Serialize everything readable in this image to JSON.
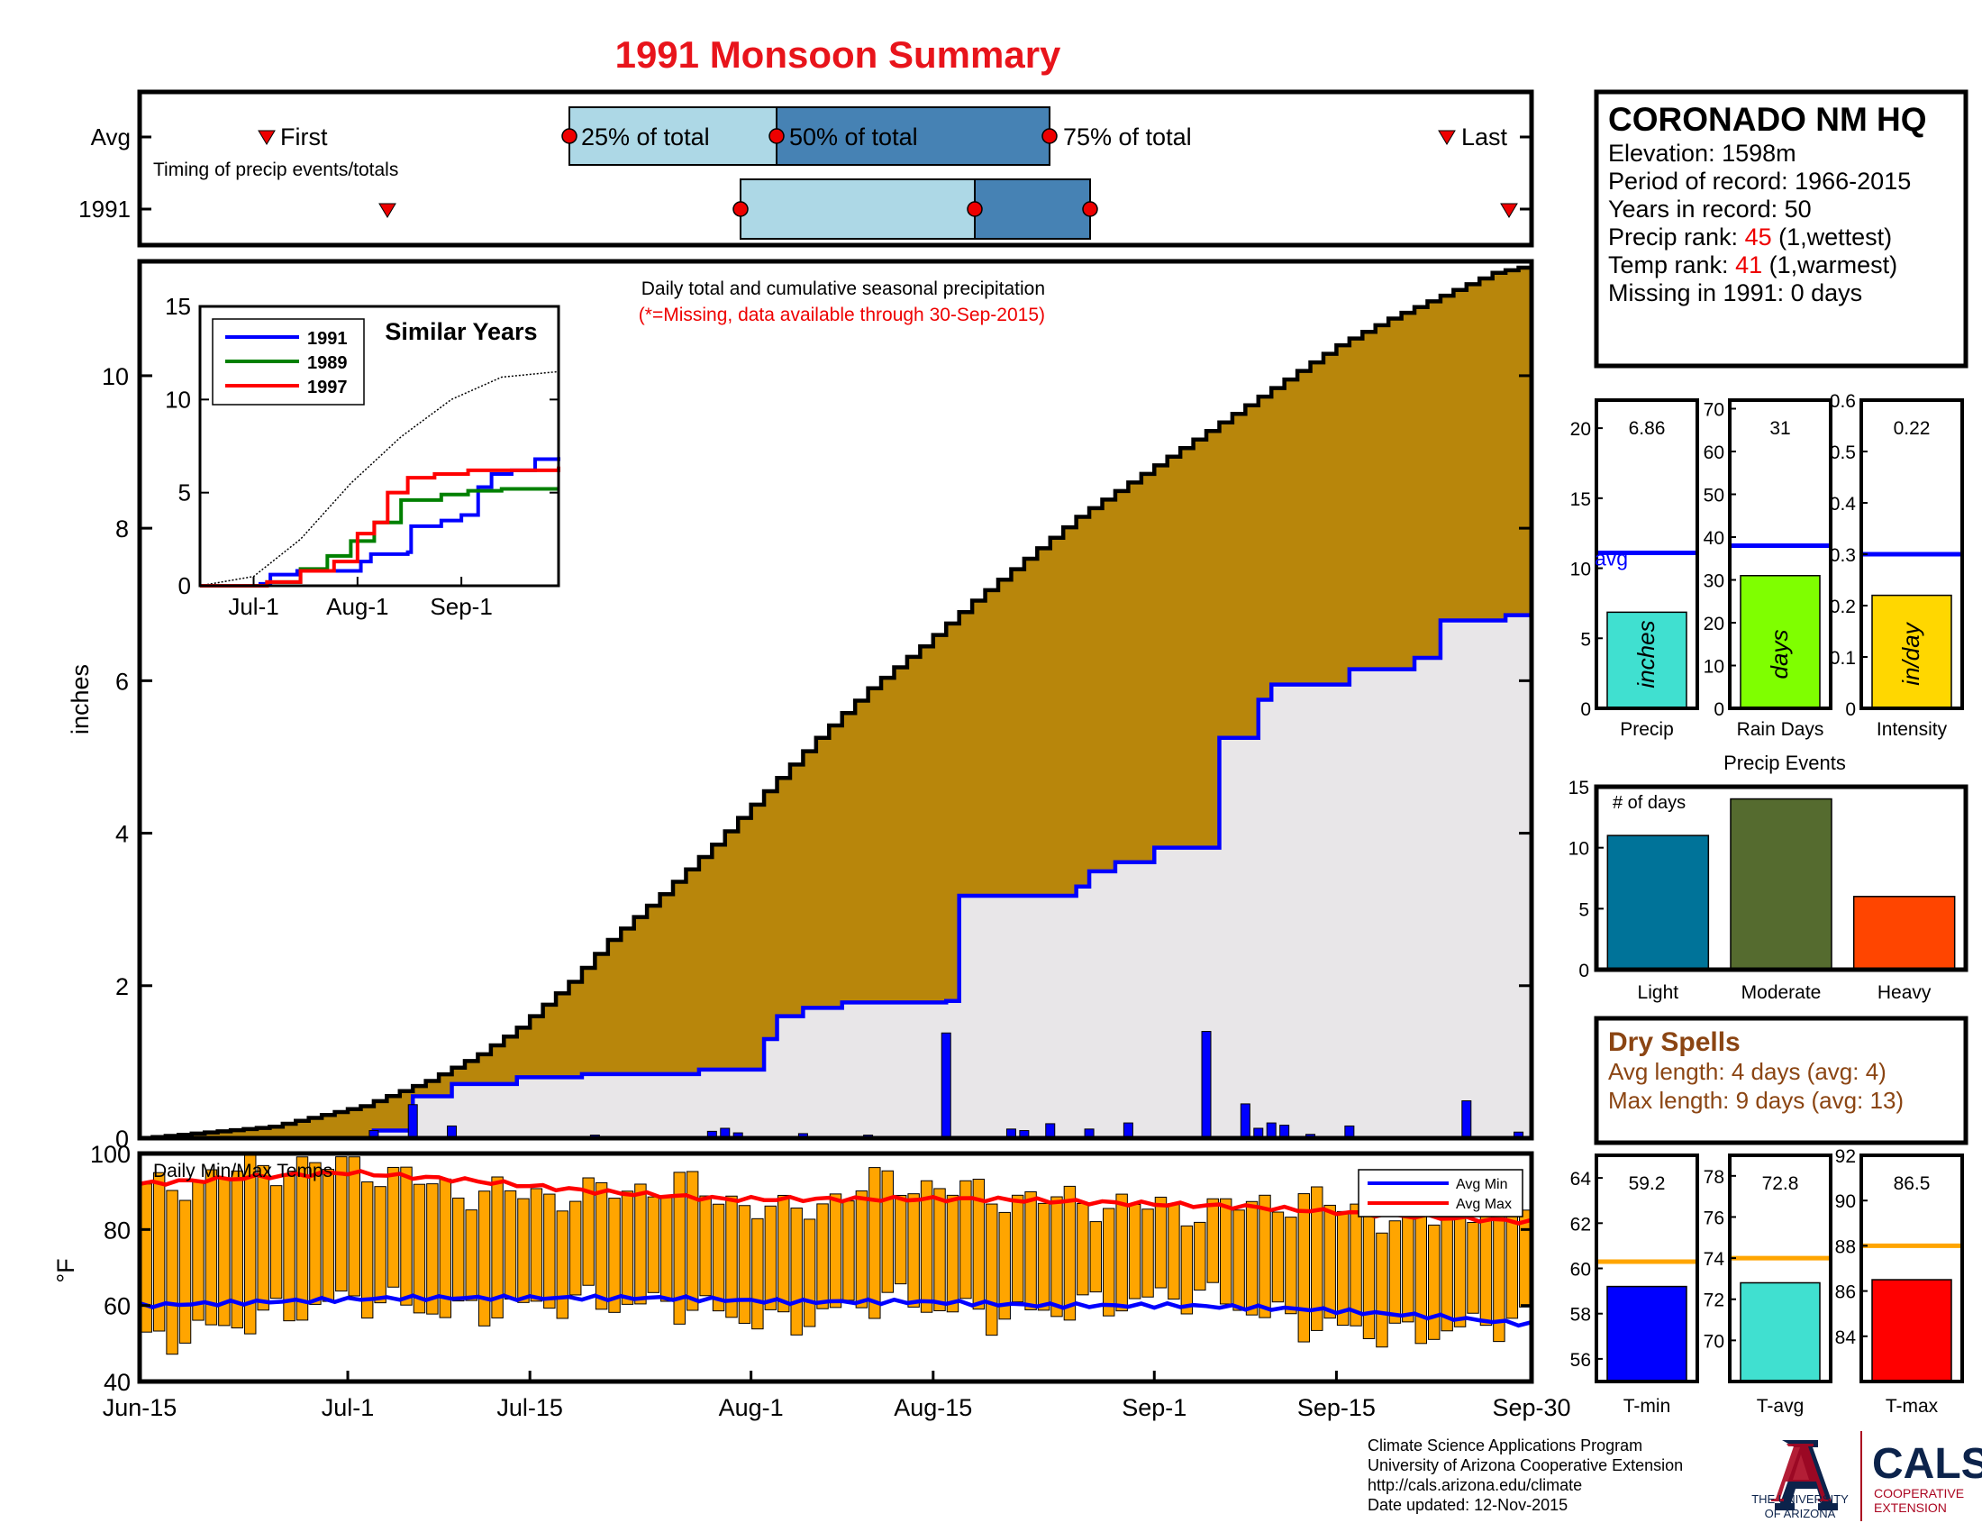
{
  "title": "1991 Monsoon Summary",
  "timing": {
    "row_labels": [
      "Avg",
      "1991"
    ],
    "first_label": "First",
    "last_label": "Last",
    "p25_label": "25% of total",
    "p50_label": "50% of total",
    "p75_label": "75% of total",
    "caption": "Timing of precip events/totals",
    "avg": {
      "first": "Jun-24",
      "p25": "Jul-25",
      "p50": "Aug-1",
      "p75": "Aug-24",
      "last": "Sep-28"
    },
    "year": {
      "first": "Jul-3",
      "p25": "Jul-31",
      "p50": "Aug-19",
      "p75": "Aug-28",
      "last": "Sep-29"
    }
  },
  "station": {
    "name": "CORONADO NM HQ",
    "elevation_label": "Elevation: 1598m",
    "period_label": "Period of record: 1966-2015",
    "years_label": "Years in record: 50",
    "precip_rank_prefix": "Precip rank: ",
    "precip_rank_value": "45",
    "precip_rank_suffix": " (1,wettest)",
    "temp_rank_prefix": "Temp rank: ",
    "temp_rank_value": "41",
    "temp_rank_suffix": " (1,warmest)",
    "missing_label": "Missing in 1991: 0 days"
  },
  "main_chart": {
    "annotation": "Daily total and cumulative seasonal precipitation",
    "missing_note": "(*=Missing, data available through 30-Sep-2015)",
    "ylabel": "inches",
    "x_ticks": [
      "Jun-15",
      "Jul-1",
      "Jul-15",
      "Aug-1",
      "Aug-15",
      "Sep-1",
      "Sep-15",
      "Sep-30"
    ],
    "colors": {
      "avg_fill": "#b8860b",
      "year_fill": "#e8e6e8",
      "year_line": "#0000ff",
      "daily_bars": "#0000ff"
    }
  },
  "inset": {
    "title": "Similar Years",
    "x_ticks": [
      "Jul-1",
      "Aug-1",
      "Sep-1"
    ],
    "legend": [
      {
        "name": "1991",
        "color": "#0000ff"
      },
      {
        "name": "1989",
        "color": "#008000"
      },
      {
        "name": "1997",
        "color": "#ff0000"
      }
    ]
  },
  "temps": {
    "label": "Daily Min/Max Temps",
    "ylabel": "°F",
    "legend": [
      {
        "name": "Avg Min",
        "color": "#0000ff"
      },
      {
        "name": "Avg Max",
        "color": "#ff0000"
      }
    ],
    "bar_color": "#ffa500"
  },
  "precip_summary": [
    {
      "label": "Precip",
      "value": "6.86",
      "unit": "inches",
      "color": "#40e0d0"
    },
    {
      "label": "Rain Days",
      "value": "31",
      "unit": "days",
      "color": "#7fff00"
    },
    {
      "label": "Intensity",
      "value": "0.22",
      "unit": "in/day",
      "color": "#ffd700"
    }
  ],
  "avg_label": "avg",
  "events": {
    "title": "Precip Events",
    "ylabel": "# of days",
    "categories": [
      "Light",
      "Moderate",
      "Heavy"
    ],
    "values": [
      11,
      14,
      6
    ],
    "colors": [
      "#007399",
      "#556b2f",
      "#ff4500"
    ]
  },
  "dry_spells": {
    "title": "Dry Spells",
    "avg_length": "Avg length: 4 days (avg: 4)",
    "max_length": "Max length: 9 days (avg: 13)"
  },
  "temp_summary": [
    {
      "label": "T-min",
      "value": "59.2",
      "color": "#0000ff"
    },
    {
      "label": "T-avg",
      "value": "72.8",
      "color": "#40e0d0"
    },
    {
      "label": "T-max",
      "value": "86.5",
      "color": "#ff0000"
    }
  ],
  "footer": {
    "lines": [
      "Climate Science Applications Program",
      "University of Arizona Cooperative Extension",
      "http://cals.arizona.edu/climate",
      " Date updated: 12-Nov-2015"
    ],
    "ua_line1": "THE UNIVERSITY",
    "ua_line2": "OF ARIZONA",
    "cals": "CALS",
    "cals_line1": "COOPERATIVE",
    "cals_line2": "EXTENSION"
  },
  "chart_data": [
    {
      "type": "area",
      "title": "Daily total and cumulative seasonal precipitation",
      "xlabel": "",
      "ylabel": "inches",
      "x_range": [
        "Jun-15",
        "Sep-30"
      ],
      "ylim": [
        0,
        11.5
      ],
      "x_ticks": [
        "Jun-15",
        "Jul-1",
        "Jul-15",
        "Aug-1",
        "Aug-15",
        "Sep-1",
        "Sep-15",
        "Sep-30"
      ],
      "y_ticks": [
        0,
        2,
        4,
        6,
        8,
        10
      ],
      "series": [
        {
          "x_day": [
            0,
            10,
            17,
            22,
            26,
            29,
            33,
            36,
            40,
            44,
            48,
            52,
            56,
            60,
            64,
            68,
            72,
            76,
            80,
            84,
            88,
            92,
            96,
            100,
            104,
            107
          ],
          "values": [
            0,
            0.15,
            0.42,
            0.75,
            1.1,
            1.45,
            2.05,
            2.6,
            3.2,
            3.85,
            4.55,
            5.25,
            5.9,
            6.45,
            7.05,
            7.6,
            8.15,
            8.6,
            9.05,
            9.5,
            9.95,
            10.4,
            10.75,
            11.05,
            11.35,
            11.45
          ]
        },
        {
          "name": "1991",
          "x_day": [
            0,
            18,
            21,
            24,
            29,
            34,
            43,
            48,
            49,
            51,
            54,
            62,
            63,
            72,
            73,
            75,
            78,
            83,
            86,
            87,
            93,
            98,
            100,
            105,
            107
          ],
          "values": [
            0,
            0.1,
            0.55,
            0.71,
            0.8,
            0.84,
            0.9,
            1.3,
            1.6,
            1.71,
            1.78,
            1.8,
            3.18,
            3.3,
            3.5,
            3.62,
            3.81,
            5.25,
            5.75,
            5.95,
            6.15,
            6.3,
            6.79,
            6.86,
            6.86
          ]
        }
      ],
      "daily_bars": {
        "name": "1991 daily",
        "x_day": [
          18,
          21,
          24,
          35,
          44,
          45,
          46,
          51,
          56,
          62,
          67,
          68,
          70,
          73,
          76,
          82,
          85,
          86,
          87,
          88,
          90,
          93,
          102,
          106
        ],
        "values": [
          0.1,
          0.44,
          0.16,
          0.04,
          0.09,
          0.13,
          0.07,
          0.06,
          0.04,
          1.38,
          0.12,
          0.1,
          0.19,
          0.12,
          0.2,
          1.4,
          0.45,
          0.13,
          0.2,
          0.17,
          0.05,
          0.16,
          0.49,
          0.08
        ]
      }
    },
    {
      "type": "line",
      "title": "Similar Years",
      "x_ticks": [
        "Jul-1",
        "Aug-1",
        "Sep-1"
      ],
      "y_ticks": [
        0,
        5,
        10,
        15
      ],
      "ylim": [
        0,
        15
      ],
      "series": [
        {
          "name": "Average",
          "x_day": [
            0,
            16,
            30,
            45,
            60,
            75,
            90,
            107
          ],
          "values": [
            0,
            0.5,
            2.5,
            5.5,
            8.0,
            10.0,
            11.2,
            11.5
          ]
        },
        {
          "name": "1991",
          "x_day": [
            0,
            18,
            21,
            29,
            48,
            51,
            62,
            63,
            72,
            78,
            83,
            87,
            93,
            100,
            107
          ],
          "values": [
            0,
            0.1,
            0.6,
            0.8,
            1.3,
            1.7,
            1.8,
            3.2,
            3.5,
            3.8,
            5.3,
            6.0,
            6.2,
            6.8,
            6.9
          ]
        },
        {
          "name": "1989",
          "x_day": [
            0,
            20,
            30,
            38,
            45,
            52,
            56,
            60,
            72,
            80,
            90,
            107
          ],
          "values": [
            0,
            0.2,
            0.9,
            1.6,
            2.4,
            3.4,
            3.4,
            4.6,
            4.9,
            5.1,
            5.2,
            5.2
          ]
        },
        {
          "name": "1997",
          "x_day": [
            0,
            20,
            30,
            40,
            47,
            52,
            56,
            62,
            70,
            80,
            90,
            107
          ],
          "values": [
            0,
            0.2,
            0.8,
            1.3,
            2.8,
            3.4,
            5.0,
            5.8,
            6.0,
            6.2,
            6.2,
            6.4
          ]
        }
      ]
    },
    {
      "type": "bar",
      "title": "Daily Min/Max Temps",
      "ylabel": "°F",
      "ylim": [
        40,
        100
      ],
      "y_ticks": [
        40,
        60,
        80,
        100
      ],
      "x_ticks": [
        "Jun-15",
        "Jul-1",
        "Jul-15",
        "Aug-1",
        "Aug-15",
        "Sep-1",
        "Sep-15",
        "Sep-30"
      ],
      "series": [
        {
          "name": "Avg Max",
          "x_day": [
            0,
            10,
            16,
            25,
            35,
            45,
            55,
            65,
            75,
            85,
            95,
            107
          ],
          "values": [
            92,
            94,
            95,
            93,
            90,
            88,
            88,
            88,
            87,
            86,
            84,
            82
          ]
        },
        {
          "name": "Avg Min",
          "x_day": [
            0,
            10,
            20,
            30,
            40,
            50,
            60,
            70,
            80,
            90,
            100,
            107
          ],
          "values": [
            60,
            61,
            62,
            62,
            62,
            61,
            61,
            60,
            60,
            59,
            57,
            55
          ]
        },
        {
          "name": "Daily Max",
          "x_day": [
            0,
            8,
            16,
            24,
            33,
            41,
            49,
            57,
            65,
            73,
            81,
            89,
            97,
            105
          ],
          "values": [
            90,
            96,
            97,
            90,
            89,
            92,
            84,
            93,
            89,
            87,
            85,
            88,
            82,
            87
          ]
        },
        {
          "name": "Daily Min",
          "x_day": [
            0,
            8,
            16,
            24,
            33,
            41,
            49,
            57,
            65,
            73,
            81,
            89,
            97,
            105
          ],
          "values": [
            50,
            56,
            62,
            58,
            61,
            60,
            55,
            62,
            57,
            60,
            63,
            55,
            52,
            56
          ]
        }
      ]
    },
    {
      "type": "bar",
      "title": "Precip",
      "categories": [
        "Precip"
      ],
      "values": [
        6.86
      ],
      "avg": 11.1,
      "ylim": [
        0,
        22
      ],
      "y_ticks": [
        0,
        5,
        10,
        15,
        20
      ]
    },
    {
      "type": "bar",
      "title": "Rain Days",
      "categories": [
        "Rain Days"
      ],
      "values": [
        31
      ],
      "avg": 38,
      "ylim": [
        0,
        72
      ],
      "y_ticks": [
        0,
        10,
        20,
        30,
        40,
        50,
        60,
        70
      ]
    },
    {
      "type": "bar",
      "title": "Intensity",
      "categories": [
        "Intensity"
      ],
      "values": [
        0.22
      ],
      "avg": 0.3,
      "ylim": [
        0,
        0.6
      ],
      "y_ticks": [
        0,
        0.1,
        0.2,
        0.3,
        0.4,
        0.5,
        0.6
      ]
    },
    {
      "type": "bar",
      "title": "Precip Events",
      "categories": [
        "Light",
        "Moderate",
        "Heavy"
      ],
      "values": [
        11,
        14,
        6
      ],
      "ylim": [
        0,
        15
      ],
      "y_ticks": [
        0,
        5,
        10,
        15
      ]
    },
    {
      "type": "bar",
      "title": "T-min",
      "categories": [
        "T-min"
      ],
      "values": [
        59.2
      ],
      "avg": 60.3,
      "ylim": [
        55,
        65
      ],
      "y_ticks": [
        56,
        58,
        60,
        62,
        64
      ]
    },
    {
      "type": "bar",
      "title": "T-avg",
      "categories": [
        "T-avg"
      ],
      "values": [
        72.8
      ],
      "avg": 74.0,
      "ylim": [
        68,
        79
      ],
      "y_ticks": [
        70,
        72,
        74,
        76,
        78
      ]
    },
    {
      "type": "bar",
      "title": "T-max",
      "categories": [
        "T-max"
      ],
      "values": [
        86.5
      ],
      "avg": 88.0,
      "ylim": [
        82,
        92
      ],
      "y_ticks": [
        84,
        86,
        88,
        90,
        92
      ]
    }
  ]
}
